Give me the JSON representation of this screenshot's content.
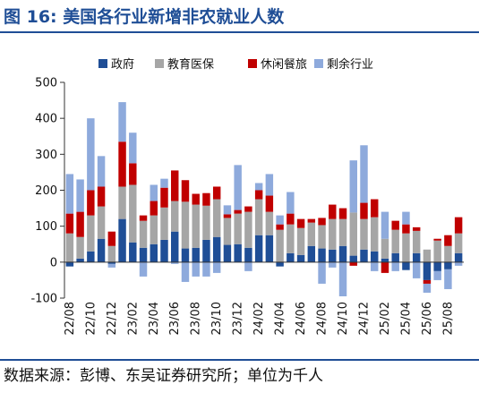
{
  "title": "图 16:  美国各行业新增非农就业人数",
  "source": "数据来源：彭博、东吴证券研究所；单位为千人",
  "colors": {
    "title": "#1f4e96",
    "government": "#1f4e96",
    "education_health": "#a6a6a6",
    "leisure_hospitality": "#c00000",
    "other": "#8eaadc"
  },
  "chart_data": {
    "type": "bar",
    "stacked": true,
    "legend_position": "top",
    "ylim": [
      -100,
      500
    ],
    "yticks": [
      -100,
      0,
      100,
      200,
      300,
      400,
      500
    ],
    "xtick_labels": [
      "22/08",
      "22/10",
      "22/12",
      "23/02",
      "23/04",
      "23/06",
      "23/08",
      "23/10",
      "23/12",
      "24/02",
      "24/04",
      "24/06",
      "24/08",
      "24/10",
      "24/12",
      "25/02",
      "25/04",
      "25/06",
      "25/08"
    ],
    "categories": [
      "22/08",
      "22/09",
      "22/10",
      "22/11",
      "22/12",
      "23/01",
      "23/02",
      "23/03",
      "23/04",
      "23/05",
      "23/06",
      "23/07",
      "23/08",
      "23/09",
      "23/10",
      "23/11",
      "23/12",
      "24/01",
      "24/02",
      "24/03",
      "24/04",
      "24/05",
      "24/06",
      "24/07",
      "24/08",
      "24/09",
      "24/10",
      "24/11",
      "24/12",
      "25/01",
      "25/02",
      "25/03",
      "25/04",
      "25/05",
      "25/06",
      "25/07",
      "25/08",
      "25/09"
    ],
    "series": [
      {
        "name": "政府",
        "color_key": "government",
        "values": [
          -12,
          10,
          30,
          65,
          -5,
          120,
          55,
          40,
          50,
          62,
          85,
          38,
          40,
          62,
          70,
          48,
          50,
          40,
          75,
          75,
          -12,
          25,
          20,
          45,
          38,
          35,
          45,
          18,
          35,
          30,
          10,
          25,
          -22,
          25,
          -50,
          -25,
          -20,
          25
        ]
      },
      {
        "name": "教育医保",
        "color_key": "education_health",
        "values": [
          80,
          60,
          100,
          90,
          45,
          90,
          160,
          75,
          80,
          90,
          85,
          130,
          120,
          95,
          105,
          75,
          85,
          100,
          100,
          65,
          90,
          80,
          75,
          65,
          65,
          85,
          75,
          120,
          85,
          95,
          55,
          65,
          80,
          62,
          35,
          60,
          45,
          55
        ]
      },
      {
        "name": "休闲餐旅",
        "color_key": "leisure_hospitality",
        "values": [
          55,
          70,
          70,
          55,
          40,
          125,
          60,
          15,
          40,
          55,
          85,
          60,
          30,
          35,
          35,
          10,
          10,
          15,
          25,
          45,
          15,
          30,
          25,
          10,
          20,
          40,
          30,
          -10,
          45,
          50,
          -30,
          25,
          25,
          10,
          -10,
          5,
          30,
          45
        ]
      },
      {
        "name": "剩余行业",
        "color_key": "other",
        "values": [
          110,
          90,
          200,
          85,
          -10,
          110,
          85,
          -40,
          45,
          25,
          -5,
          -55,
          -40,
          -40,
          -30,
          25,
          125,
          -25,
          20,
          60,
          25,
          60,
          0,
          0,
          -60,
          -15,
          -95,
          145,
          160,
          -25,
          75,
          -25,
          35,
          -45,
          -25,
          -25,
          -55,
          -10
        ]
      }
    ]
  }
}
